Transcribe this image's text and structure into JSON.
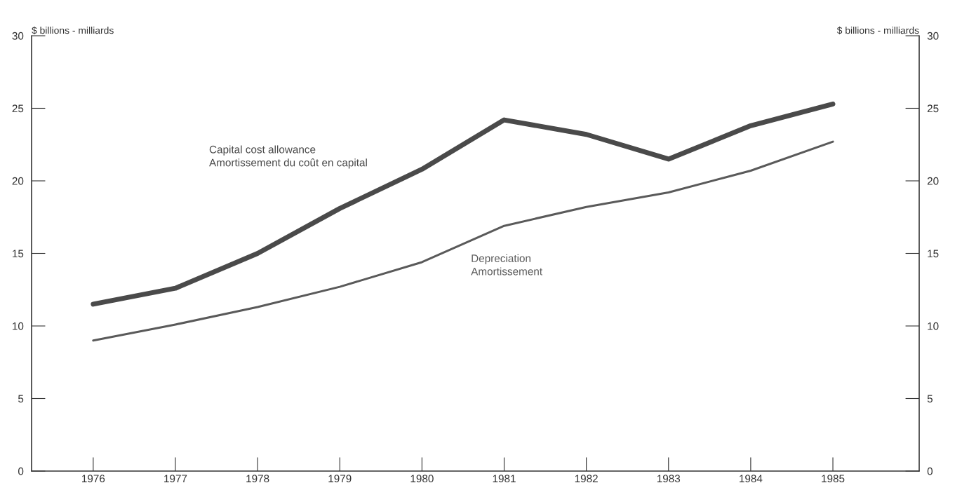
{
  "chart_data": {
    "type": "line",
    "ylabel": "$ billions - milliards",
    "y2label": "$ billions - milliards",
    "x": [
      1976,
      1977,
      1978,
      1979,
      1980,
      1981,
      1982,
      1983,
      1984,
      1985
    ],
    "xlim": [
      1975.25,
      1986.05
    ],
    "xticks": [
      1976,
      1977,
      1978,
      1979,
      1980,
      1981,
      1982,
      1983,
      1984,
      1985
    ],
    "ylim": [
      0,
      30
    ],
    "yticks": [
      0,
      5,
      10,
      15,
      20,
      25,
      30
    ],
    "y2lim": [
      0,
      30
    ],
    "y2ticks": [
      0,
      5,
      10,
      15,
      20,
      25,
      30
    ],
    "grid": false,
    "legend": false,
    "marker": "none",
    "line_style": "solid",
    "series": [
      {
        "name": "Capital cost allowance\nAmortissement du coût en capital",
        "color": "#4a4a4a",
        "values": [
          11.5,
          12.6,
          15.0,
          18.1,
          20.8,
          24.2,
          23.2,
          21.5,
          23.8,
          25.3
        ]
      },
      {
        "name": "Depreciation\nAmortissement",
        "color": "#5a5a5a",
        "values": [
          9.0,
          10.1,
          11.3,
          12.7,
          14.4,
          16.9,
          18.2,
          19.2,
          20.7,
          22.7
        ]
      }
    ]
  }
}
